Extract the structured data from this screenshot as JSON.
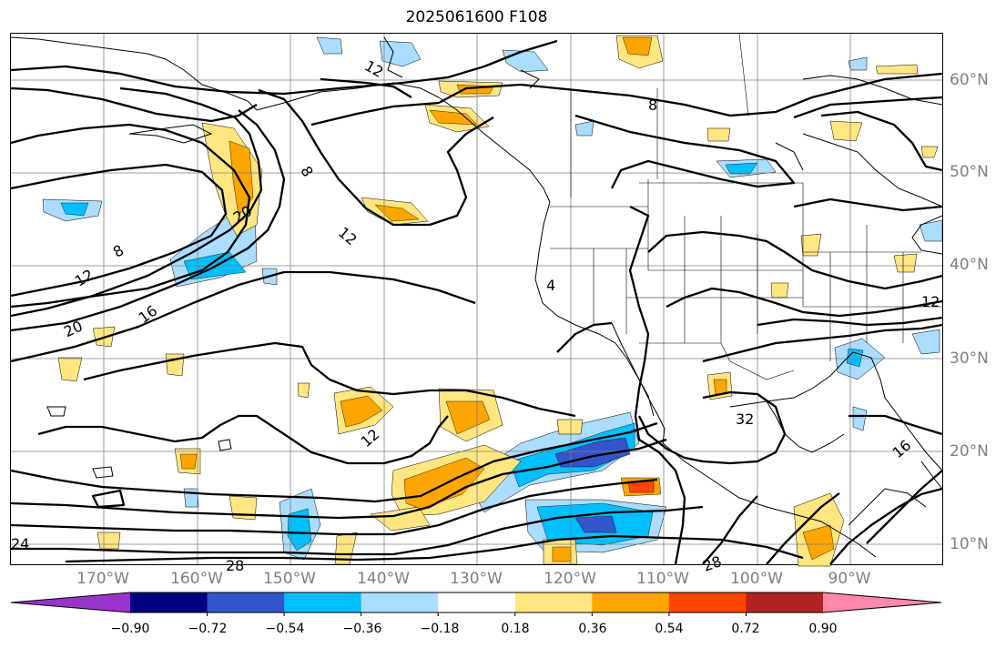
{
  "title": "2025061600 F108",
  "lat_labels": [
    "60°N",
    "50°N",
    "40°N",
    "30°N",
    "20°N",
    "10°N"
  ],
  "lon_labels": [
    "170°W",
    "160°W",
    "150°W",
    "140°W",
    "130°W",
    "120°W",
    "110°W",
    "100°W",
    "90°W"
  ],
  "colorbar": {
    "colors": [
      "#9933cc",
      "#000080",
      "#3355cc",
      "#00bfff",
      "#aaddff",
      "#ffffff",
      "#ffe680",
      "#ffa500",
      "#ff4500",
      "#b22222",
      "#ff88aa"
    ],
    "tick_labels": [
      "−0.90",
      "−0.72",
      "−0.54",
      "−0.36",
      "−0.18",
      "0.18",
      "0.36",
      "0.54",
      "0.72",
      "0.90"
    ]
  },
  "contour_labels": [
    "12",
    "8",
    "8",
    "20",
    "12",
    "8",
    "12",
    "20",
    "16",
    "4",
    "12",
    "32",
    "12",
    "16",
    "24",
    "28",
    "28"
  ]
}
